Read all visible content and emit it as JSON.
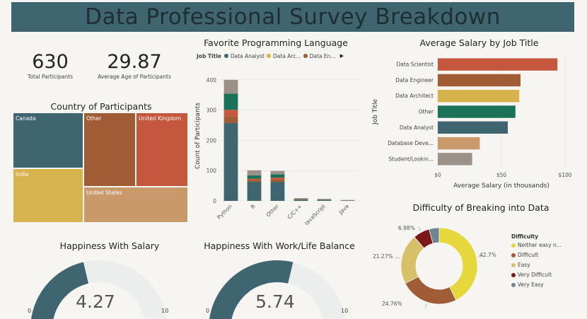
{
  "banner": {
    "title": "Data Professional Survey Breakdown"
  },
  "kpis": [
    {
      "value": "630",
      "label": "Total Participants"
    },
    {
      "value": "29.87",
      "label": "Average Age of Participants"
    }
  ],
  "colors": {
    "banner": "#3f6570",
    "teal_dark": "#3f6570",
    "rust": "#c4573c",
    "brown": "#a05c35",
    "mustard": "#d6b34c",
    "tan": "#c9996a",
    "green": "#1a7359",
    "grey": "#9b9189",
    "yellow": "#e6d83c",
    "maroon": "#7b1818",
    "slate": "#6f8593",
    "light": "#eceeee"
  },
  "chart_data": [
    {
      "id": "country",
      "type": "treemap",
      "title": "Country of Participants",
      "cells": [
        {
          "label": "Canada",
          "color": "#3f6570"
        },
        {
          "label": "India",
          "color": "#d6b34c"
        },
        {
          "label": "Other",
          "color": "#a05c35"
        },
        {
          "label": "United Kingdom",
          "color": "#c4573c"
        },
        {
          "label": "United States",
          "color": "#c9996a"
        }
      ]
    },
    {
      "id": "language",
      "type": "bar",
      "stacked": true,
      "title": "Favorite Programming Language",
      "legend_title": "Job Title",
      "legend": [
        {
          "name": "Data Analyst",
          "color": "#3f6570"
        },
        {
          "name": "Data Arc...",
          "color": "#d6b34c"
        },
        {
          "name": "Data En...",
          "color": "#a05c35"
        }
      ],
      "ylabel": "Count of Participants",
      "xlabel": "",
      "ylim": [
        0,
        430
      ],
      "yticks": [
        0,
        100,
        200,
        300,
        400
      ],
      "categories": [
        "Python",
        "R",
        "Other",
        "C/C++",
        "JavaScript",
        "Java"
      ],
      "series": [
        {
          "color": "#3f6570",
          "values": [
            257,
            63,
            63,
            4,
            3,
            1
          ]
        },
        {
          "color": "#a05c35",
          "values": [
            22,
            6,
            8,
            1,
            1,
            1
          ]
        },
        {
          "color": "#c4573c",
          "values": [
            22,
            4,
            6,
            1,
            0,
            0
          ]
        },
        {
          "color": "#1a7359",
          "values": [
            53,
            11,
            11,
            1,
            1,
            0
          ]
        },
        {
          "color": "#9b9189",
          "values": [
            46,
            17,
            11,
            2,
            2,
            1
          ]
        }
      ]
    },
    {
      "id": "salary",
      "type": "bar",
      "orientation": "horizontal",
      "title": "Average Salary by Job Title",
      "ylabel": "Job Title",
      "xlabel": "Average Salary (in thousands)",
      "xlim": [
        0,
        100
      ],
      "xticks": [
        "$0",
        "$50",
        "$100"
      ],
      "categories": [
        "Data Scientist",
        "Data Engineer",
        "Data Architect",
        "Other",
        "Data Analyst",
        "Database Deve...",
        "Student/Lookin..."
      ],
      "values": [
        94,
        65,
        64,
        61,
        55,
        33,
        27
      ],
      "colors": [
        "#c4573c",
        "#a05c35",
        "#d6b34c",
        "#1a7359",
        "#3f6570",
        "#c9996a",
        "#9b9189"
      ]
    },
    {
      "id": "difficulty",
      "type": "pie",
      "donut": true,
      "title": "Difficulty of Breaking into Data",
      "legend_title": "Difficulty",
      "slices": [
        {
          "name": "Neither easy n...",
          "value": 42.7,
          "label": "42.7%",
          "color": "#e6d83c"
        },
        {
          "name": "Difficult",
          "value": 24.76,
          "label": "24.76%",
          "color": "#a05c35"
        },
        {
          "name": "Easy",
          "value": 21.27,
          "label": "21.27%",
          "color": "#d6c06a"
        },
        {
          "name": "Very Difficult",
          "value": 6.98,
          "label": "6.98%",
          "color": "#7b1818"
        },
        {
          "name": "Very Easy",
          "value": 4.29,
          "label": "",
          "color": "#6f8593"
        }
      ]
    },
    {
      "id": "happy_salary",
      "type": "gauge",
      "title": "Happiness With Salary",
      "value": 4.27,
      "value_label": "4.27",
      "min": 0,
      "max": 10,
      "min_label": "0",
      "max_label": "10"
    },
    {
      "id": "happy_balance",
      "type": "gauge",
      "title": "Happiness With Work/Life Balance",
      "value": 5.74,
      "value_label": "5.74",
      "min": 0,
      "max": 10,
      "min_label": "0",
      "max_label": "10"
    }
  ]
}
